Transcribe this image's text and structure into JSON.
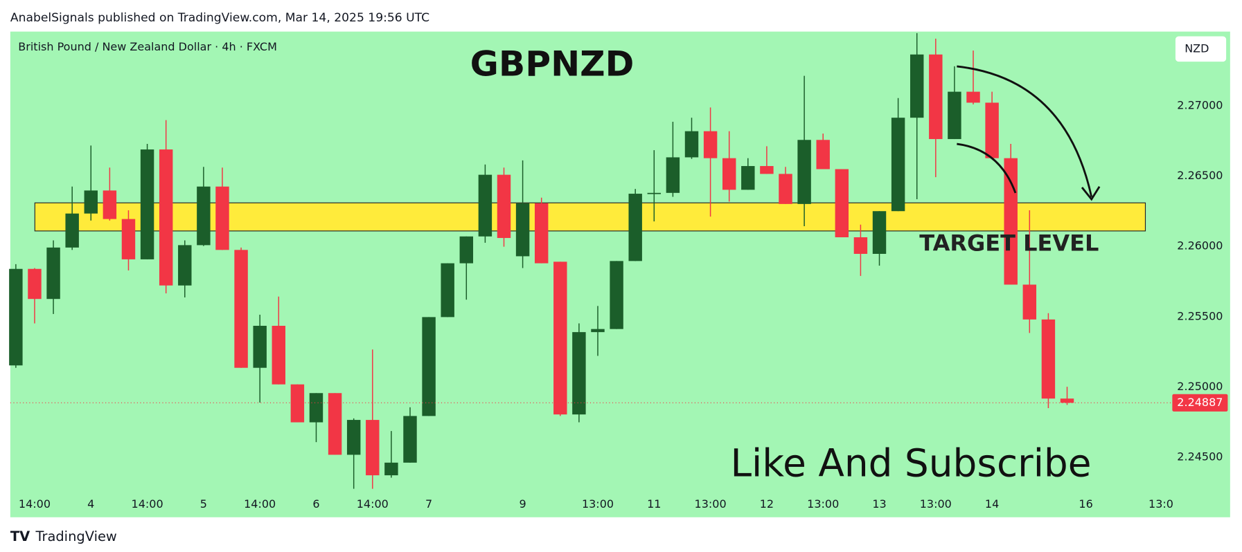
{
  "header": "AnabelSignals published on TradingView.com, Mar 14, 2025 19:56 UTC",
  "footer": "TradingView",
  "chart_data": {
    "type": "candlestick",
    "title": "GBPNZD",
    "subtitle": "British Pound / New Zealand Dollar · 4h · FXCM",
    "currency": "NZD",
    "annotations": [
      "TARGET LEVEL",
      "Like And Subscribe"
    ],
    "background": "#a3f6b4",
    "up_color": "#1b5e2a",
    "down_color": "#f23645",
    "zone": [
      2.2611,
      2.2631
    ],
    "zone_color": "#ffeb3b",
    "last_price": 2.24887,
    "ylim": [
      2.24275,
      2.27529
    ],
    "yticks": [
      {
        "value": 2.245,
        "label": "2.24500"
      },
      {
        "value": 2.25,
        "label": "2.25000"
      },
      {
        "value": 2.255,
        "label": "2.25500"
      },
      {
        "value": 2.26,
        "label": "2.26000"
      },
      {
        "value": 2.265,
        "label": "2.26500"
      },
      {
        "value": 2.27,
        "label": "2.27000"
      }
    ],
    "grid": false,
    "categories": [
      null,
      "14:00",
      null,
      null,
      "4",
      null,
      null,
      "14:00",
      null,
      null,
      "5",
      null,
      null,
      "14:00",
      null,
      null,
      "6",
      null,
      null,
      "14:00",
      null,
      null,
      "7",
      null,
      null,
      null,
      null,
      "9",
      null,
      null,
      null,
      "13:00",
      null,
      null,
      "11",
      null,
      null,
      "13:00",
      null,
      null,
      "12",
      null,
      null,
      "13:00",
      null,
      null,
      "13",
      null,
      null,
      "13:00",
      null,
      null,
      "14",
      null,
      null,
      null,
      null,
      "16",
      null,
      null,
      null,
      "13:0"
    ],
    "open": [
      2.25153,
      2.2584,
      2.25626,
      2.25992,
      2.26234,
      2.26398,
      2.26195,
      2.25908,
      2.2669,
      2.25722,
      2.26009,
      2.26426,
      2.25975,
      2.25136,
      2.25435,
      2.25018,
      2.24748,
      2.24956,
      2.24517,
      2.24765,
      2.24371,
      2.24461,
      2.24793,
      2.25497,
      2.2588,
      2.26071,
      2.2651,
      2.2593,
      2.26307,
      2.25891,
      2.24804,
      2.2539,
      2.25412,
      2.25896,
      2.26375,
      2.26381,
      2.26634,
      2.2682,
      2.26628,
      2.26403,
      2.26572,
      2.26516,
      2.26302,
      2.26758,
      2.2655,
      2.26065,
      2.25947,
      2.26251,
      2.26916,
      2.27366,
      2.26764,
      2.27101,
      2.27023,
      2.26628,
      2.25728,
      2.2548,
      2.24917,
      null,
      null,
      null,
      null,
      null
    ],
    "high": [
      2.25874,
      2.25846,
      2.26043,
      2.26426,
      2.26718,
      2.26561,
      2.26257,
      2.2673,
      2.26899,
      2.26043,
      2.26566,
      2.26561,
      2.25992,
      2.25514,
      2.25643,
      2.25018,
      2.24956,
      2.24956,
      2.24776,
      2.25266,
      2.24686,
      2.24855,
      2.25497,
      2.2588,
      2.26071,
      2.26583,
      2.26561,
      2.26612,
      2.26347,
      2.25891,
      2.25452,
      2.25576,
      2.25896,
      2.26409,
      2.26685,
      2.26887,
      2.26916,
      2.26989,
      2.2682,
      2.26628,
      2.26713,
      2.26566,
      2.27214,
      2.26803,
      2.2655,
      2.26155,
      2.26251,
      2.27056,
      2.27518,
      2.27479,
      2.27282,
      2.27394,
      2.27101,
      2.2673,
      2.26257,
      2.25525,
      2.25001,
      null,
      null,
      null,
      null,
      null
    ],
    "low": [
      2.25136,
      2.25452,
      2.25519,
      2.25975,
      2.26184,
      2.26184,
      2.25829,
      2.25908,
      2.25666,
      2.25637,
      2.26003,
      2.25975,
      2.25136,
      2.24889,
      2.25018,
      2.24748,
      2.24607,
      2.24517,
      2.24275,
      2.24275,
      2.24354,
      2.24461,
      2.24793,
      2.25497,
      2.25621,
      2.26026,
      2.25998,
      2.25846,
      2.2588,
      2.24793,
      2.24748,
      2.25221,
      2.25412,
      2.25896,
      2.26178,
      2.26353,
      2.26623,
      2.26212,
      2.26319,
      2.26403,
      2.26516,
      2.26302,
      2.26144,
      2.2655,
      2.26065,
      2.2579,
      2.25863,
      2.26251,
      2.26336,
      2.26493,
      2.26764,
      2.27011,
      2.26628,
      2.25728,
      2.25384,
      2.24849,
      2.24872,
      null,
      null,
      null,
      null,
      null
    ],
    "close": [
      2.2584,
      2.25626,
      2.25992,
      2.26234,
      2.26398,
      2.26195,
      2.25908,
      2.2669,
      2.25722,
      2.26009,
      2.26426,
      2.25975,
      2.25136,
      2.25435,
      2.25018,
      2.24748,
      2.24956,
      2.24517,
      2.24765,
      2.24371,
      2.24461,
      2.24793,
      2.25497,
      2.2588,
      2.26071,
      2.2651,
      2.2606,
      2.26307,
      2.2588,
      2.24804,
      2.2539,
      2.25412,
      2.25896,
      2.26375,
      2.26381,
      2.26634,
      2.2682,
      2.26628,
      2.26403,
      2.26572,
      2.26516,
      2.26302,
      2.26758,
      2.2655,
      2.26065,
      2.25947,
      2.26251,
      2.26916,
      2.27366,
      2.26764,
      2.27101,
      2.27023,
      2.26628,
      2.25728,
      2.2548,
      2.24917,
      2.24887,
      null,
      null,
      null,
      null,
      null
    ]
  }
}
